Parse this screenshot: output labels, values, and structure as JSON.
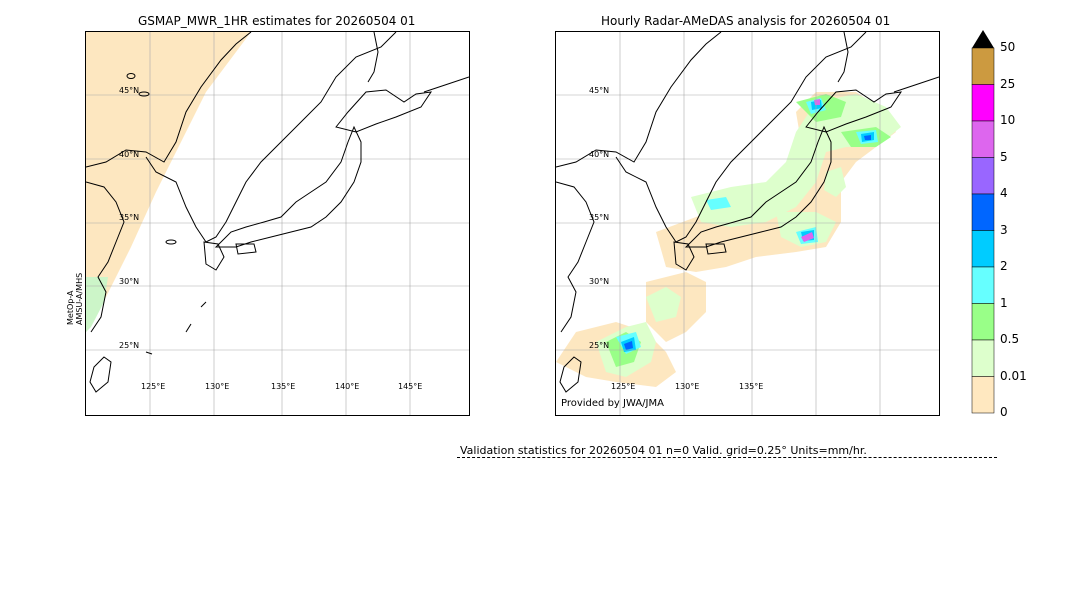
{
  "left_panel": {
    "title": "GSMAP_MWR_1HR estimates for 20260504 01",
    "sensor_label": "MetOp-A\nAMSU-A/MHS",
    "sensor_line1": "MetOp-A",
    "sensor_line2": "AMSU-A/MHS",
    "lat_labels": [
      "45°N",
      "40°N",
      "35°N",
      "30°N",
      "25°N"
    ],
    "lon_labels": [
      "125°E",
      "130°E",
      "135°E",
      "140°E",
      "145°E"
    ]
  },
  "right_panel": {
    "title": "Hourly Radar-AMeDAS analysis for 20260504 01",
    "lat_labels": [
      "45°N",
      "40°N",
      "35°N",
      "30°N",
      "25°N"
    ],
    "lon_labels": [
      "125°E",
      "130°E",
      "135°E"
    ],
    "provided_by": "Provided by JWA/JMA"
  },
  "colorbar": {
    "labels": [
      "50",
      "25",
      "10",
      "5",
      "4",
      "3",
      "2",
      "1",
      "0.5",
      "0.01",
      "0"
    ],
    "colors": [
      "#cc9a40",
      "#ff00ff",
      "#dd66ee",
      "#9966ff",
      "#0066ff",
      "#00ccff",
      "#66ffff",
      "#99ff88",
      "#ddffcc",
      "#ffe8c0"
    ],
    "extend_color": "#000000"
  },
  "footer": {
    "stats": "Validation statistics for 20260504 01  n=0 Valid. grid=0.25° Units=mm/hr."
  }
}
